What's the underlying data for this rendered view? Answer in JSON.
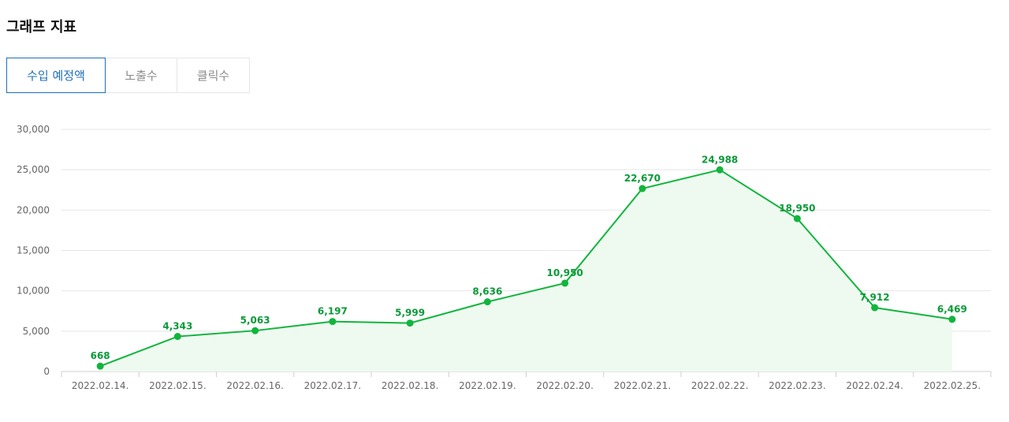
{
  "header": {
    "title": "그래프 지표"
  },
  "tabs": [
    {
      "label": "수입 예정액",
      "active": true
    },
    {
      "label": "노출수",
      "active": false
    },
    {
      "label": "클릭수",
      "active": false
    }
  ],
  "colors": {
    "line": "#11b53c",
    "area": "#eefaf0",
    "grid": "#e5e5e5",
    "tab_active": "#1f6fb7"
  },
  "chart_data": {
    "type": "line",
    "x": [
      "2022.02.14.",
      "2022.02.15.",
      "2022.02.16.",
      "2022.02.17.",
      "2022.02.18.",
      "2022.02.19.",
      "2022.02.20.",
      "2022.02.21.",
      "2022.02.22.",
      "2022.02.23.",
      "2022.02.24.",
      "2022.02.25."
    ],
    "values": [
      668,
      4343,
      5063,
      6197,
      5999,
      8636,
      10950,
      22670,
      24988,
      18950,
      7912,
      6469
    ],
    "value_labels": [
      "668",
      "4,343",
      "5,063",
      "6,197",
      "5,999",
      "8,636",
      "10,950",
      "22,670",
      "24,988",
      "18,950",
      "7,912",
      "6,469"
    ],
    "yticks": [
      0,
      5000,
      10000,
      15000,
      20000,
      25000,
      30000
    ],
    "ytick_labels": [
      "0",
      "5,000",
      "10,000",
      "15,000",
      "20,000",
      "25,000",
      "30,000"
    ],
    "ylim": [
      0,
      30000
    ],
    "grid": true,
    "area_fill": true,
    "legend": "none"
  }
}
